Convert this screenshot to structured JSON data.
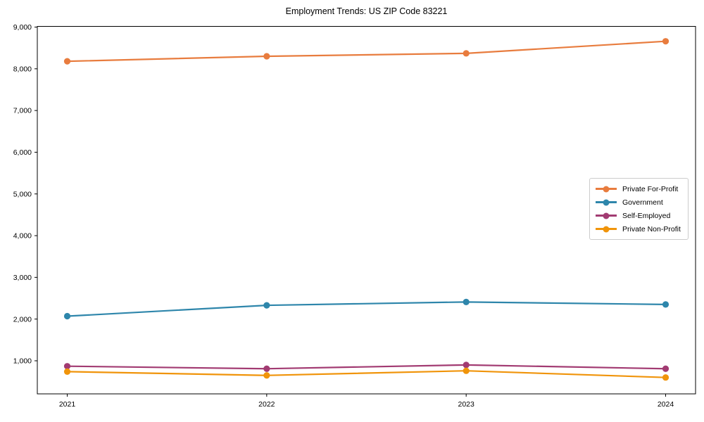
{
  "chart_data": {
    "type": "line",
    "title": "Employment Trends: US ZIP Code 83221",
    "xlabel": "",
    "ylabel": "",
    "x": [
      2021,
      2022,
      2023,
      2024
    ],
    "categories": [
      "2021",
      "2022",
      "2023",
      "2024"
    ],
    "series": [
      {
        "name": "Private For-Profit",
        "color": "#E87C3E",
        "values": [
          8180,
          8300,
          8370,
          8660
        ]
      },
      {
        "name": "Government",
        "color": "#2E86AB",
        "values": [
          2070,
          2330,
          2410,
          2350
        ]
      },
      {
        "name": "Self-Employed",
        "color": "#A23B72",
        "values": [
          870,
          810,
          900,
          810
        ]
      },
      {
        "name": "Private Non-Profit",
        "color": "#F0940A",
        "values": [
          740,
          650,
          760,
          600
        ]
      }
    ],
    "yticks": [
      1000,
      2000,
      3000,
      4000,
      5000,
      6000,
      7000,
      8000,
      9000
    ],
    "ylim": [
      207,
      9017
    ],
    "xlim": [
      2020.85,
      2024.15
    ],
    "grid": false,
    "legend_position": "center-right",
    "axis_color": "#000000",
    "text_color": "#000000",
    "background_color": "#ffffff"
  }
}
